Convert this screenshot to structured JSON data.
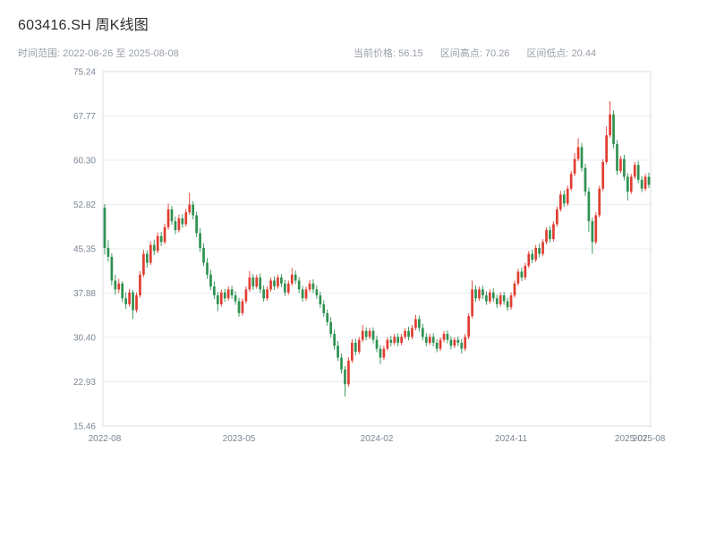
{
  "header": {
    "title": "603416.SH 周K线图",
    "range_label": "时间范围:",
    "range_value": "2022-08-26 至 2025-08-08",
    "stats": [
      {
        "label": "当前价格:",
        "value": "56.15"
      },
      {
        "label": "区间高点:",
        "value": "70.26"
      },
      {
        "label": "区间低点:",
        "value": "20.44"
      }
    ]
  },
  "chart_data": {
    "type": "candlestick",
    "title": "603416.SH 周K线图",
    "interval": "weekly",
    "start_date": "2022-08-26",
    "end_date": "2025-08-08",
    "current_price": 56.15,
    "range_high": 70.26,
    "range_low": 20.44,
    "ylim": [
      15.46,
      75.24
    ],
    "yticks": [
      75.24,
      67.77,
      60.3,
      52.82,
      45.35,
      37.88,
      30.4,
      22.93,
      15.46
    ],
    "xticks": [
      {
        "label": "2022-08",
        "index": 0
      },
      {
        "label": "2023-05",
        "index": 38
      },
      {
        "label": "2024-02",
        "index": 77
      },
      {
        "label": "2024-11",
        "index": 115
      },
      {
        "label": "2025-07",
        "index": 149
      },
      {
        "label": "2025-08",
        "index": 154
      }
    ],
    "up_color": "#e03d31",
    "down_color": "#2e9150",
    "grid": true,
    "legend": "none",
    "candles_ohlc": [
      [
        52.3,
        52.9,
        44.4,
        45.5
      ],
      [
        45.5,
        46.8,
        43.2,
        44.0
      ],
      [
        44.0,
        44.6,
        39.2,
        40.0
      ],
      [
        40.0,
        41.0,
        37.6,
        38.5
      ],
      [
        38.5,
        40.3,
        37.9,
        39.5
      ],
      [
        39.5,
        39.9,
        36.3,
        37.0
      ],
      [
        37.0,
        38.0,
        35.2,
        36.0
      ],
      [
        36.0,
        38.6,
        35.6,
        38.0
      ],
      [
        38.0,
        38.4,
        33.5,
        35.0
      ],
      [
        35.0,
        38.0,
        34.6,
        37.5
      ],
      [
        37.5,
        41.6,
        37.1,
        41.0
      ],
      [
        41.0,
        45.2,
        40.6,
        44.5
      ],
      [
        44.5,
        45.1,
        42.2,
        43.0
      ],
      [
        43.0,
        46.6,
        42.6,
        46.0
      ],
      [
        46.0,
        46.9,
        44.3,
        45.0
      ],
      [
        45.0,
        48.1,
        44.6,
        47.5
      ],
      [
        47.5,
        48.2,
        45.8,
        46.5
      ],
      [
        46.5,
        49.6,
        46.1,
        49.0
      ],
      [
        49.0,
        53.0,
        48.6,
        52.0
      ],
      [
        52.0,
        52.6,
        49.4,
        50.0
      ],
      [
        50.0,
        50.8,
        47.8,
        48.5
      ],
      [
        48.5,
        51.1,
        48.1,
        50.5
      ],
      [
        50.5,
        51.2,
        48.9,
        49.5
      ],
      [
        49.5,
        52.1,
        49.1,
        51.5
      ],
      [
        51.5,
        54.8,
        51.1,
        52.8
      ],
      [
        52.8,
        53.4,
        50.3,
        51.0
      ],
      [
        51.0,
        51.6,
        47.3,
        48.0
      ],
      [
        48.0,
        48.8,
        44.8,
        45.5
      ],
      [
        45.5,
        46.3,
        42.4,
        43.0
      ],
      [
        43.0,
        43.8,
        40.3,
        41.0
      ],
      [
        41.0,
        41.8,
        38.4,
        39.0
      ],
      [
        39.0,
        39.8,
        36.9,
        37.5
      ],
      [
        37.5,
        38.1,
        34.8,
        36.0
      ],
      [
        36.0,
        38.5,
        35.6,
        38.0
      ],
      [
        38.0,
        38.6,
        36.4,
        37.0
      ],
      [
        37.0,
        39.0,
        36.6,
        38.5
      ],
      [
        38.5,
        39.1,
        36.9,
        37.5
      ],
      [
        37.5,
        38.2,
        35.9,
        36.5
      ],
      [
        36.5,
        37.1,
        33.9,
        34.5
      ],
      [
        34.5,
        37.0,
        34.1,
        36.5
      ],
      [
        36.5,
        39.0,
        36.1,
        38.5
      ],
      [
        38.5,
        41.6,
        38.1,
        40.5
      ],
      [
        40.5,
        41.1,
        38.4,
        39.0
      ],
      [
        39.0,
        41.0,
        38.6,
        40.5
      ],
      [
        40.5,
        41.2,
        37.9,
        38.5
      ],
      [
        38.5,
        39.2,
        36.4,
        37.0
      ],
      [
        37.0,
        39.0,
        36.6,
        38.5
      ],
      [
        38.5,
        40.5,
        38.1,
        40.0
      ],
      [
        40.0,
        40.7,
        38.4,
        39.0
      ],
      [
        39.0,
        41.0,
        38.6,
        40.5
      ],
      [
        40.5,
        41.1,
        38.9,
        39.5
      ],
      [
        39.5,
        40.1,
        37.4,
        38.0
      ],
      [
        38.0,
        40.0,
        37.6,
        39.5
      ],
      [
        39.5,
        42.1,
        39.1,
        41.0
      ],
      [
        41.0,
        41.7,
        39.4,
        40.0
      ],
      [
        40.0,
        40.6,
        37.9,
        38.5
      ],
      [
        38.5,
        39.1,
        36.4,
        37.0
      ],
      [
        37.0,
        39.0,
        36.6,
        38.5
      ],
      [
        38.5,
        40.1,
        38.1,
        39.5
      ],
      [
        39.5,
        40.2,
        37.9,
        38.5
      ],
      [
        38.5,
        39.2,
        36.9,
        37.5
      ],
      [
        37.5,
        38.1,
        35.4,
        36.0
      ],
      [
        36.0,
        36.7,
        33.9,
        34.5
      ],
      [
        34.5,
        35.1,
        32.4,
        33.0
      ],
      [
        33.0,
        33.8,
        30.4,
        31.0
      ],
      [
        31.0,
        31.7,
        28.3,
        29.0
      ],
      [
        29.0,
        29.8,
        26.4,
        27.0
      ],
      [
        27.0,
        27.7,
        24.3,
        25.0
      ],
      [
        25.0,
        25.6,
        20.44,
        22.5
      ],
      [
        22.5,
        27.1,
        22.1,
        26.5
      ],
      [
        26.5,
        30.1,
        26.1,
        29.5
      ],
      [
        29.5,
        30.2,
        27.4,
        28.0
      ],
      [
        28.0,
        30.5,
        27.6,
        30.0
      ],
      [
        30.0,
        32.5,
        29.6,
        31.5
      ],
      [
        31.5,
        32.1,
        29.9,
        30.5
      ],
      [
        30.5,
        32.0,
        30.1,
        31.5
      ],
      [
        31.5,
        32.1,
        29.4,
        30.0
      ],
      [
        30.0,
        30.7,
        27.9,
        28.5
      ],
      [
        28.5,
        29.1,
        25.9,
        27.0
      ],
      [
        27.0,
        29.0,
        26.6,
        28.5
      ],
      [
        28.5,
        30.4,
        28.1,
        30.0
      ],
      [
        30.0,
        30.7,
        28.9,
        29.5
      ],
      [
        29.5,
        31.0,
        29.1,
        30.5
      ],
      [
        30.5,
        31.1,
        28.9,
        29.5
      ],
      [
        29.5,
        31.0,
        29.1,
        30.5
      ],
      [
        30.5,
        32.0,
        30.1,
        31.5
      ],
      [
        31.5,
        32.2,
        29.9,
        30.5
      ],
      [
        30.5,
        32.5,
        30.1,
        32.0
      ],
      [
        32.0,
        34.2,
        31.6,
        33.5
      ],
      [
        33.5,
        34.1,
        31.4,
        32.0
      ],
      [
        32.0,
        32.7,
        29.9,
        30.5
      ],
      [
        30.5,
        31.1,
        28.9,
        29.5
      ],
      [
        29.5,
        31.0,
        29.1,
        30.5
      ],
      [
        30.5,
        31.1,
        28.9,
        29.5
      ],
      [
        29.5,
        30.1,
        27.9,
        28.5
      ],
      [
        28.5,
        30.4,
        28.1,
        30.0
      ],
      [
        30.0,
        31.5,
        29.6,
        31.0
      ],
      [
        31.0,
        31.6,
        29.4,
        30.0
      ],
      [
        30.0,
        30.6,
        28.4,
        29.0
      ],
      [
        29.0,
        30.4,
        28.6,
        30.0
      ],
      [
        30.0,
        30.6,
        28.9,
        29.5
      ],
      [
        29.5,
        30.1,
        27.7,
        28.5
      ],
      [
        28.5,
        31.0,
        28.1,
        30.5
      ],
      [
        30.5,
        34.5,
        30.1,
        34.0
      ],
      [
        34.0,
        40.0,
        33.6,
        38.5
      ],
      [
        38.5,
        39.2,
        36.4,
        37.0
      ],
      [
        37.0,
        39.0,
        36.6,
        38.5
      ],
      [
        38.5,
        39.1,
        36.9,
        37.5
      ],
      [
        37.5,
        38.2,
        35.9,
        36.5
      ],
      [
        36.5,
        38.5,
        36.1,
        38.0
      ],
      [
        38.0,
        38.7,
        36.4,
        37.0
      ],
      [
        37.0,
        37.6,
        35.4,
        36.0
      ],
      [
        36.0,
        38.0,
        35.6,
        37.5
      ],
      [
        37.5,
        38.1,
        35.9,
        36.5
      ],
      [
        36.5,
        37.1,
        34.9,
        35.5
      ],
      [
        35.5,
        38.0,
        35.1,
        37.5
      ],
      [
        37.5,
        40.0,
        37.1,
        39.5
      ],
      [
        39.5,
        42.0,
        39.1,
        41.5
      ],
      [
        41.5,
        42.2,
        39.9,
        40.5
      ],
      [
        40.5,
        43.0,
        40.1,
        42.5
      ],
      [
        42.5,
        45.0,
        42.1,
        44.5
      ],
      [
        44.5,
        45.2,
        42.9,
        43.5
      ],
      [
        43.5,
        46.0,
        43.1,
        45.5
      ],
      [
        45.5,
        46.2,
        43.9,
        44.5
      ],
      [
        44.5,
        47.0,
        44.1,
        46.5
      ],
      [
        46.5,
        49.0,
        46.1,
        48.5
      ],
      [
        48.5,
        49.2,
        46.4,
        47.0
      ],
      [
        47.0,
        50.0,
        46.6,
        49.5
      ],
      [
        49.5,
        52.5,
        49.1,
        52.0
      ],
      [
        52.0,
        55.1,
        51.6,
        54.5
      ],
      [
        54.5,
        55.2,
        52.4,
        53.0
      ],
      [
        53.0,
        56.0,
        52.6,
        55.5
      ],
      [
        55.5,
        58.5,
        55.1,
        58.0
      ],
      [
        58.0,
        61.5,
        57.6,
        60.5
      ],
      [
        60.5,
        64.0,
        60.1,
        62.5
      ],
      [
        62.5,
        63.2,
        58.4,
        59.0
      ],
      [
        59.0,
        59.7,
        54.3,
        55.0
      ],
      [
        55.0,
        55.7,
        48.2,
        50.0
      ],
      [
        50.0,
        50.6,
        44.5,
        46.5
      ],
      [
        46.5,
        51.5,
        46.1,
        51.0
      ],
      [
        51.0,
        56.0,
        50.6,
        55.5
      ],
      [
        55.5,
        60.5,
        55.1,
        60.0
      ],
      [
        60.0,
        66.0,
        59.6,
        64.5
      ],
      [
        64.5,
        70.26,
        64.1,
        68.0
      ],
      [
        68.0,
        68.7,
        62.3,
        63.0
      ],
      [
        63.0,
        63.7,
        57.8,
        58.5
      ],
      [
        58.5,
        61.0,
        58.1,
        60.5
      ],
      [
        60.5,
        61.2,
        56.9,
        57.5
      ],
      [
        57.5,
        58.1,
        53.5,
        55.0
      ],
      [
        55.0,
        58.0,
        54.6,
        57.5
      ],
      [
        57.5,
        60.0,
        57.1,
        59.5
      ],
      [
        59.5,
        60.2,
        56.4,
        57.0
      ],
      [
        57.0,
        57.6,
        54.9,
        55.5
      ],
      [
        55.5,
        58.0,
        55.1,
        57.5
      ],
      [
        57.5,
        58.2,
        55.6,
        56.15
      ]
    ]
  }
}
